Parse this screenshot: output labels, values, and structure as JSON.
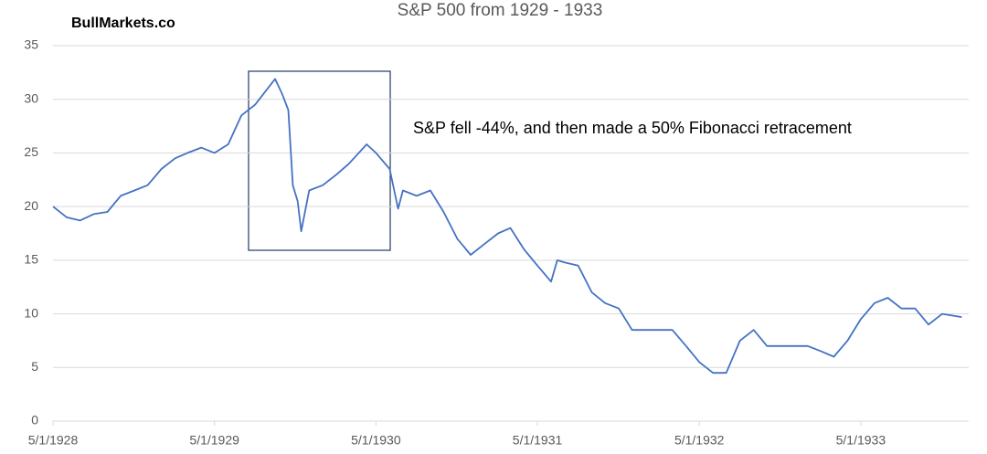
{
  "chart_data": {
    "type": "line",
    "title": "S&P 500 from 1929 - 1933",
    "brand": "BullMarkets.co",
    "annotation": "S&P fell -44%, and then made a 50% Fibonacci retracement",
    "x": [
      "5/1/1928",
      "6/1/1928",
      "7/1/1928",
      "8/1/1928",
      "9/1/1928",
      "10/1/1928",
      "11/1/1928",
      "12/1/1928",
      "1/1/1929",
      "2/1/1929",
      "3/1/1929",
      "4/1/1929",
      "5/1/1929",
      "6/1/1929",
      "7/1/1929",
      "8/1/1929",
      "9/15/1929",
      "10/1/1929",
      "10/15/1929",
      "10/25/1929",
      "11/5/1929",
      "11/13/1929",
      "12/1/1929",
      "1/1/1930",
      "2/1/1930",
      "3/1/1930",
      "4/10/1930",
      "5/1/1930",
      "6/1/1930",
      "6/20/1930",
      "7/1/1930",
      "8/1/1930",
      "9/1/1930",
      "10/1/1930",
      "11/1/1930",
      "12/1/1930",
      "1/1/1931",
      "2/1/1931",
      "3/1/1931",
      "4/1/1931",
      "5/1/1931",
      "6/1/1931",
      "6/15/1931",
      "7/1/1931",
      "8/1/1931",
      "9/1/1931",
      "10/1/1931",
      "11/1/1931",
      "12/1/1931",
      "1/1/1932",
      "2/1/1932",
      "3/1/1932",
      "4/1/1932",
      "5/1/1932",
      "6/1/1932",
      "7/1/1932",
      "8/1/1932",
      "9/1/1932",
      "10/1/1932",
      "11/1/1932",
      "12/1/1932",
      "1/1/1933",
      "2/1/1933",
      "3/1/1933",
      "4/1/1933",
      "5/1/1933",
      "6/1/1933",
      "7/1/1933",
      "8/1/1933",
      "9/1/1933",
      "10/1/1933",
      "11/1/1933",
      "12/15/1933"
    ],
    "series": [
      {
        "name": "S&P 500",
        "color": "#4472c4",
        "values": [
          20,
          19,
          18.7,
          19.3,
          19.5,
          21,
          21.5,
          22,
          23.5,
          24.5,
          25,
          25.5,
          25,
          25.8,
          28.5,
          29.5,
          31.9,
          30.5,
          29,
          22,
          20.5,
          17.7,
          21.5,
          22,
          23,
          24,
          25.8,
          25,
          23.5,
          19.8,
          21.5,
          21,
          21.5,
          19.5,
          17,
          15.5,
          16.5,
          17.5,
          18,
          16,
          14.5,
          13,
          15,
          14.8,
          14.5,
          12,
          11,
          10.5,
          8.5,
          8.5,
          8.5,
          8.5,
          7,
          5.5,
          4.5,
          4.5,
          7.5,
          8.5,
          7,
          7,
          7,
          7,
          6.5,
          6,
          7.5,
          9.5,
          11,
          11.5,
          10.5,
          10.5,
          9,
          10,
          9.7
        ]
      }
    ],
    "xlim": [
      "5/1/1928",
      "12/31/1933"
    ],
    "xticks": [
      "5/1/1928",
      "5/1/1929",
      "5/1/1930",
      "5/1/1931",
      "5/1/1932",
      "5/1/1933"
    ],
    "ylim": [
      0,
      35
    ],
    "yticks": [
      0,
      5,
      10,
      15,
      20,
      25,
      30,
      35
    ],
    "grid": true
  }
}
